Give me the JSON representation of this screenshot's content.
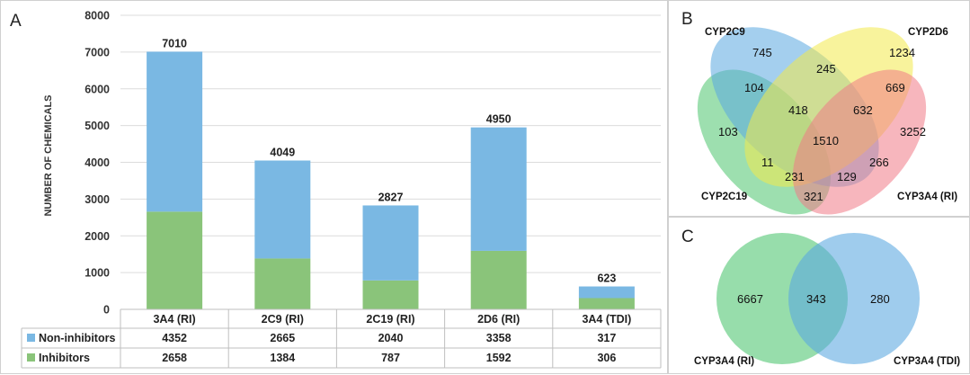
{
  "panels": {
    "a": "A",
    "b": "B",
    "c": "C"
  },
  "chart_data": [
    {
      "type": "bar",
      "stacked": true,
      "ylabel": "NUMBER OF CHEMICALS",
      "xlabel": "",
      "ylim": [
        0,
        8000
      ],
      "yticks": [
        0,
        1000,
        2000,
        3000,
        4000,
        5000,
        6000,
        7000,
        8000
      ],
      "grid": true,
      "legend": "data-table",
      "categories": [
        "3A4 (RI)",
        "2C9 (RI)",
        "2C19 (RI)",
        "2D6 (RI)",
        "3A4 (TDI)"
      ],
      "series": [
        {
          "name": "Inhibitors",
          "color": "#8ac47a",
          "values": [
            2658,
            1384,
            787,
            1592,
            306
          ]
        },
        {
          "name": "Non-inhibitors",
          "color": "#7ab8e3",
          "values": [
            4352,
            2665,
            2040,
            3358,
            317
          ]
        }
      ],
      "totals": [
        7010,
        4049,
        2827,
        4950,
        623
      ],
      "table_rows": [
        {
          "label": "Non-inhibitors",
          "color": "#7ab8e3",
          "values": [
            "4352",
            "2665",
            "2040",
            "3358",
            "317"
          ]
        },
        {
          "label": "Inhibitors",
          "color": "#8ac47a",
          "values": [
            "2658",
            "1384",
            "787",
            "1592",
            "306"
          ]
        }
      ]
    }
  ],
  "venn_b": {
    "sets": [
      {
        "label": "CYP2C9",
        "color": "#5aa7e0"
      },
      {
        "label": "CYP2D6",
        "color": "#f2ea4a"
      },
      {
        "label": "CYP2C19",
        "color": "#4cc46e"
      },
      {
        "label": "CYP3A4 (RI)",
        "color": "#f07a86"
      }
    ],
    "regions": {
      "c9_only": "745",
      "d6_only": "1234",
      "c19_only": "103",
      "a4_only": "3252",
      "c9_d6": "245",
      "c9_c19": "104",
      "d6_a4": "669",
      "c19_a4": "321",
      "c9_d6_c19": "418",
      "c9_d6_a4": "632",
      "c19_d6_a4": "266",
      "c9_c19_a4": "129",
      "c19_d6": "11",
      "c9_a4": "231",
      "all": "1510"
    }
  },
  "venn_c": {
    "sets": [
      {
        "label": "CYP3A4 (RI)",
        "color": "#4cc46e"
      },
      {
        "label": "CYP3A4 (TDI)",
        "color": "#5aa7e0"
      }
    ],
    "regions": {
      "left_only": "6667",
      "both": "343",
      "right_only": "280"
    }
  }
}
